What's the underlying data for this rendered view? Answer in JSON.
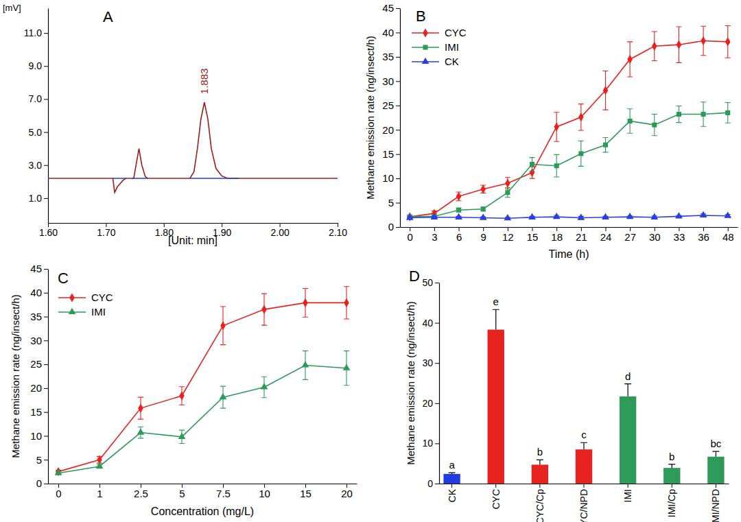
{
  "chart_data": [
    {
      "type": "line",
      "title": "A",
      "xlabel": "[Unit: min]",
      "ylabel": "[mV]",
      "xlim": [
        1.6,
        2.1
      ],
      "ylim": [
        -0.5,
        12.5
      ],
      "xticks": [
        {
          "value": 1.6,
          "label": "1.60"
        },
        {
          "value": 1.7,
          "label": "1.70"
        },
        {
          "value": 1.8,
          "label": "1.80"
        },
        {
          "value": 1.9,
          "label": "1.90"
        },
        {
          "value": 2.0,
          "label": "2.00"
        },
        {
          "value": 2.1,
          "label": "2.10"
        }
      ],
      "yticks": [
        {
          "value": 1,
          "label": "1.0"
        },
        {
          "value": 3,
          "label": "3.0"
        },
        {
          "value": 5,
          "label": "5.0"
        },
        {
          "value": 7,
          "label": "7.0"
        },
        {
          "value": 9,
          "label": "9.0"
        },
        {
          "value": 11,
          "label": "11.0"
        }
      ],
      "grid": false,
      "series": [
        {
          "color": "#9e1b1b",
          "x": [
            1.6,
            1.7,
            1.712,
            1.715,
            1.72,
            1.73,
            1.735,
            1.748,
            1.752,
            1.757,
            1.762,
            1.768,
            1.772,
            1.845,
            1.852,
            1.858,
            1.864,
            1.87,
            1.876,
            1.882,
            1.89,
            1.9,
            1.91,
            2.1
          ],
          "values": [
            2.2,
            2.2,
            2.2,
            1.35,
            1.7,
            2.1,
            2.2,
            2.2,
            3.0,
            4.0,
            3.0,
            2.3,
            2.2,
            2.2,
            2.6,
            4.0,
            5.8,
            6.8,
            5.8,
            4.0,
            2.8,
            2.35,
            2.2,
            2.2
          ]
        },
        {
          "color": "#1f3fd0",
          "x": [
            1.712,
            1.735,
            1.74,
            1.745,
            1.772,
            1.78,
            1.845,
            1.93
          ],
          "values": [
            2.2,
            2.2,
            null,
            2.2,
            2.2,
            null,
            2.2,
            2.2
          ]
        }
      ],
      "annotations": [
        {
          "text": "1.883",
          "x": 1.87,
          "y": 7.3
        }
      ]
    },
    {
      "type": "line",
      "title": "B",
      "xlabel": "Time (h)",
      "ylabel": "Methane emission rate (ng/insect/h)",
      "categories": [
        "0",
        "3",
        "6",
        "9",
        "12",
        "15",
        "18",
        "21",
        "24",
        "27",
        "30",
        "33",
        "36",
        "48"
      ],
      "ylim": [
        0,
        45
      ],
      "yticks": [
        0,
        5,
        10,
        15,
        20,
        25,
        30,
        35,
        40,
        45
      ],
      "grid": false,
      "legend": "upper left",
      "series": [
        {
          "name": "CYC",
          "color": "#e8221f",
          "marker": "diamond",
          "values": [
            2.1,
            2.8,
            6.3,
            7.8,
            9.0,
            11.2,
            20.6,
            22.6,
            28.1,
            34.5,
            37.2,
            37.5,
            38.3,
            38.1
          ],
          "errors": [
            0.3,
            0.5,
            0.9,
            0.8,
            1.2,
            1.2,
            3.0,
            2.7,
            4.0,
            3.6,
            3.0,
            3.7,
            3.0,
            3.3
          ]
        },
        {
          "name": "IMI",
          "color": "#2e9a5a",
          "marker": "square",
          "values": [
            2.1,
            2.2,
            3.5,
            3.7,
            7.1,
            12.9,
            12.6,
            15.1,
            16.9,
            21.8,
            21.0,
            23.2,
            23.2,
            23.5
          ],
          "errors": [
            0.2,
            0.3,
            0.4,
            0.4,
            1.0,
            1.4,
            2.3,
            2.6,
            1.5,
            2.5,
            2.2,
            1.7,
            2.5,
            2.1
          ]
        },
        {
          "name": "CK",
          "color": "#2b3fe0",
          "marker": "triangle",
          "values": [
            1.9,
            2.0,
            2.0,
            1.9,
            1.8,
            2.0,
            2.1,
            1.9,
            2.0,
            2.1,
            2.0,
            2.2,
            2.4,
            2.3
          ],
          "errors": [
            0.2,
            0.2,
            0.2,
            0.2,
            0.2,
            0.2,
            0.3,
            0.3,
            0.2,
            0.2,
            0.3,
            0.2,
            0.3,
            0.3
          ]
        }
      ]
    },
    {
      "type": "line",
      "title": "C",
      "xlabel": "Concentration (mg/L)",
      "ylabel": "Methane emission rate (ng/insect/h)",
      "categories": [
        "0",
        "1",
        "2.5",
        "5",
        "7.5",
        "10",
        "15",
        "20"
      ],
      "ylim": [
        0,
        45
      ],
      "yticks": [
        0,
        5,
        10,
        15,
        20,
        25,
        30,
        35,
        40,
        45
      ],
      "grid": false,
      "legend": "upper left",
      "series": [
        {
          "name": "CYC",
          "color": "#e8221f",
          "marker": "diamond",
          "values": [
            2.5,
            5.0,
            15.8,
            18.4,
            33.1,
            36.5,
            37.9,
            37.9
          ],
          "errors": [
            0.3,
            0.7,
            2.3,
            1.9,
            4.0,
            3.3,
            3.0,
            3.4
          ]
        },
        {
          "name": "IMI",
          "color": "#2e9a5a",
          "marker": "triangle",
          "values": [
            2.2,
            3.6,
            10.7,
            9.8,
            18.1,
            20.2,
            24.8,
            24.2
          ],
          "errors": [
            0.3,
            0.4,
            1.2,
            1.4,
            2.3,
            2.2,
            3.0,
            3.6
          ]
        }
      ]
    },
    {
      "type": "bar",
      "title": "D",
      "ylabel": "Methane emission rate (ng/insect/h)",
      "categories": [
        "CK",
        "CYC",
        "CYC/Cp",
        "CYC/NPD",
        "IMI",
        "IMI/Cp",
        "IMI/NPD"
      ],
      "values": [
        2.4,
        38.3,
        4.7,
        8.5,
        21.7,
        3.9,
        6.7
      ],
      "errors": [
        0.3,
        5.0,
        1.2,
        1.7,
        3.1,
        0.9,
        1.3
      ],
      "colors": [
        "#1f3ce6",
        "#e8221f",
        "#e8221f",
        "#e8221f",
        "#2e9a5a",
        "#2e9a5a",
        "#2e9a5a"
      ],
      "annotations": [
        "a",
        "e",
        "b",
        "c",
        "d",
        "b",
        "bc"
      ],
      "ylim": [
        0,
        50
      ],
      "yticks": [
        0,
        10,
        20,
        30,
        40,
        50
      ],
      "grid": false
    }
  ]
}
